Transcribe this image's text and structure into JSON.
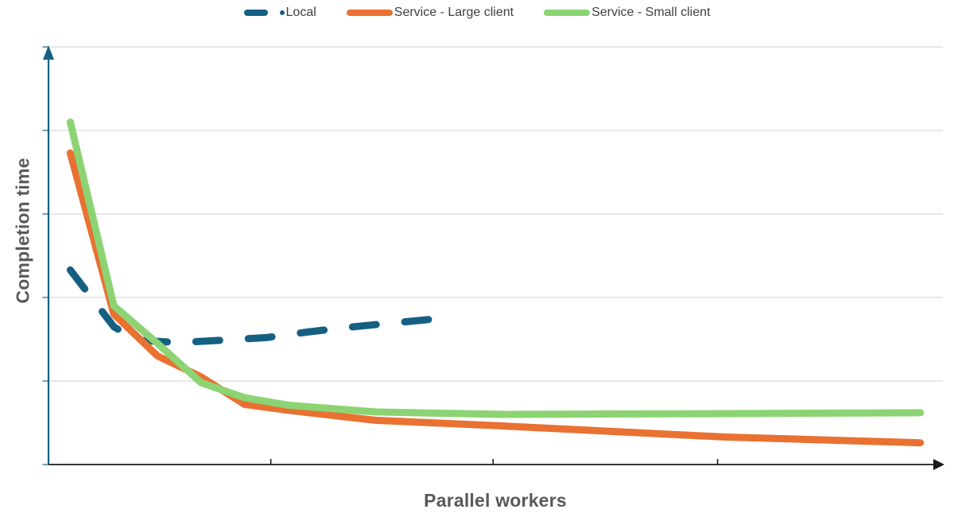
{
  "chart_data": {
    "type": "line",
    "title": "",
    "xlabel": "Parallel workers",
    "ylabel": "Completion time",
    "x_axis": {
      "min": 0,
      "max": 41,
      "ticks": [
        10.2,
        20.4,
        30.7
      ],
      "tick_labels_visible": false,
      "color": "#1a1a1a",
      "arrow": true
    },
    "y_axis": {
      "min": 0,
      "max": 5,
      "gridlines": [
        1,
        2,
        3,
        4,
        5
      ],
      "tick_labels_visible": false,
      "color": "#156082",
      "arrow": true
    },
    "grid": true,
    "grid_color": "#d9d9d9",
    "legend_position": "top-center",
    "series": [
      {
        "name": "Local",
        "color": "#156082",
        "style": "dashed",
        "width": 9,
        "points": [
          {
            "x": 1,
            "y": 2.33
          },
          {
            "x": 2,
            "y": 1.99
          },
          {
            "x": 3,
            "y": 1.65
          },
          {
            "x": 4,
            "y": 1.49
          },
          {
            "x": 6,
            "y": 1.46
          },
          {
            "x": 8,
            "y": 1.49
          },
          {
            "x": 10,
            "y": 1.52
          },
          {
            "x": 12,
            "y": 1.59
          },
          {
            "x": 14,
            "y": 1.65
          },
          {
            "x": 16,
            "y": 1.7
          },
          {
            "x": 18,
            "y": 1.75
          }
        ]
      },
      {
        "name": "Service - Large client",
        "color": "#E97132",
        "style": "solid",
        "width": 9,
        "points": [
          {
            "x": 1,
            "y": 3.73
          },
          {
            "x": 3,
            "y": 1.8
          },
          {
            "x": 5,
            "y": 1.3
          },
          {
            "x": 7,
            "y": 1.05
          },
          {
            "x": 9,
            "y": 0.72
          },
          {
            "x": 11,
            "y": 0.65
          },
          {
            "x": 15,
            "y": 0.53
          },
          {
            "x": 21,
            "y": 0.46
          },
          {
            "x": 31,
            "y": 0.33
          },
          {
            "x": 40,
            "y": 0.26
          }
        ]
      },
      {
        "name": "Service - Small client",
        "color": "#8CD473",
        "style": "solid",
        "width": 9,
        "points": [
          {
            "x": 1,
            "y": 4.1
          },
          {
            "x": 3,
            "y": 1.9
          },
          {
            "x": 5,
            "y": 1.45
          },
          {
            "x": 7,
            "y": 0.98
          },
          {
            "x": 9,
            "y": 0.8
          },
          {
            "x": 11,
            "y": 0.71
          },
          {
            "x": 15,
            "y": 0.63
          },
          {
            "x": 21,
            "y": 0.6
          },
          {
            "x": 31,
            "y": 0.61
          },
          {
            "x": 40,
            "y": 0.62
          }
        ]
      }
    ]
  }
}
